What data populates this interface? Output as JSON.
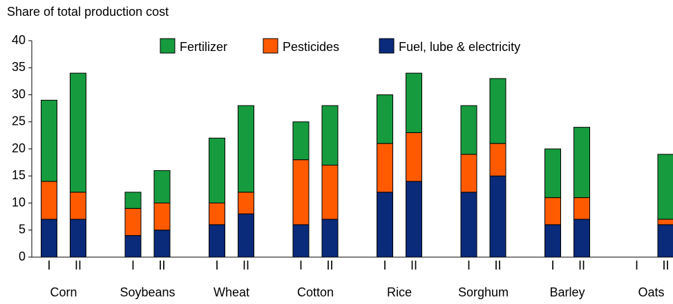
{
  "chart_data": {
    "type": "stacked-bar",
    "title": "Share of total production cost",
    "groups": [
      "Corn",
      "Soybeans",
      "Wheat",
      "Cotton",
      "Rice",
      "Sorghum",
      "Barley",
      "Oats"
    ],
    "subcategories": [
      "I",
      "II"
    ],
    "series": [
      {
        "name": "Fuel, lube & electricity",
        "color": "#0a2a7a",
        "values": [
          7,
          7,
          4,
          5,
          6,
          8,
          6,
          7,
          12,
          14,
          12,
          15,
          6,
          7,
          null,
          6
        ]
      },
      {
        "name": "Pesticides",
        "color": "#ff5a00",
        "values": [
          7,
          5,
          5,
          5,
          4,
          4,
          12,
          10,
          9,
          9,
          7,
          6,
          5,
          4,
          null,
          1
        ]
      },
      {
        "name": "Fertilizer",
        "color": "#169b3e",
        "values": [
          15,
          22,
          3,
          6,
          12,
          16,
          7,
          11,
          9,
          11,
          9,
          12,
          9,
          13,
          null,
          12
        ]
      }
    ],
    "ylim": [
      0,
      40
    ],
    "yticks": [
      0,
      5,
      10,
      15,
      20,
      25,
      30,
      35,
      40
    ]
  }
}
